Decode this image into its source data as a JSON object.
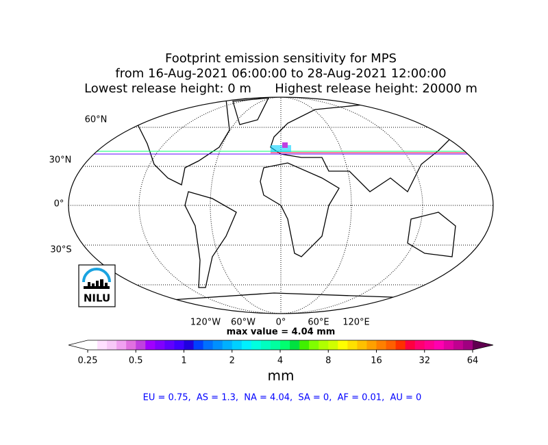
{
  "header": {
    "title_lines": [
      "Footprint emission sensitivity for MPS",
      "from 16-Aug-2021 06:00:00 to 28-Aug-2021 12:00:00",
      "Lowest release height: 0 m      Highest release height: 20000 m"
    ]
  },
  "map": {
    "lat_labels": [
      "60°N",
      "30°N",
      "0°",
      "30°S"
    ],
    "lon_labels": [
      "120°W",
      "60°W",
      "0°",
      "60°E",
      "120°E"
    ],
    "logo": "NILU",
    "max_value_text": "max value = 4.04 mm"
  },
  "colorbar": {
    "ticks": [
      0.25,
      0.5,
      1,
      2,
      4,
      8,
      16,
      32,
      64
    ],
    "scale": "log",
    "label": "mm",
    "under_color": "#ffffff",
    "over_color": "#600050",
    "colors": [
      "#ffffff",
      "#ffe0ff",
      "#f8c8f8",
      "#f0a0f0",
      "#e070e0",
      "#c040e0",
      "#a000ff",
      "#8000ff",
      "#6000ff",
      "#4000ff",
      "#2000e0",
      "#0040ff",
      "#0070ff",
      "#0090ff",
      "#00b0ff",
      "#00d0ff",
      "#00f0ff",
      "#00ffe0",
      "#00ffc0",
      "#00ffa0",
      "#00ff70",
      "#00e040",
      "#40f000",
      "#80ff00",
      "#b0ff00",
      "#d0ff00",
      "#ffff00",
      "#ffe000",
      "#ffc000",
      "#ffa000",
      "#ff8000",
      "#ff6000",
      "#ff3000",
      "#ff0040",
      "#ff0070",
      "#ff0090",
      "#ff00b0",
      "#e000a0",
      "#c00090",
      "#a00080"
    ]
  },
  "footer": {
    "text": "EU = 0.75,  AS = 1.3,  NA = 4.04,  SA = 0,  AF = 0.01,  AU = 0"
  }
}
